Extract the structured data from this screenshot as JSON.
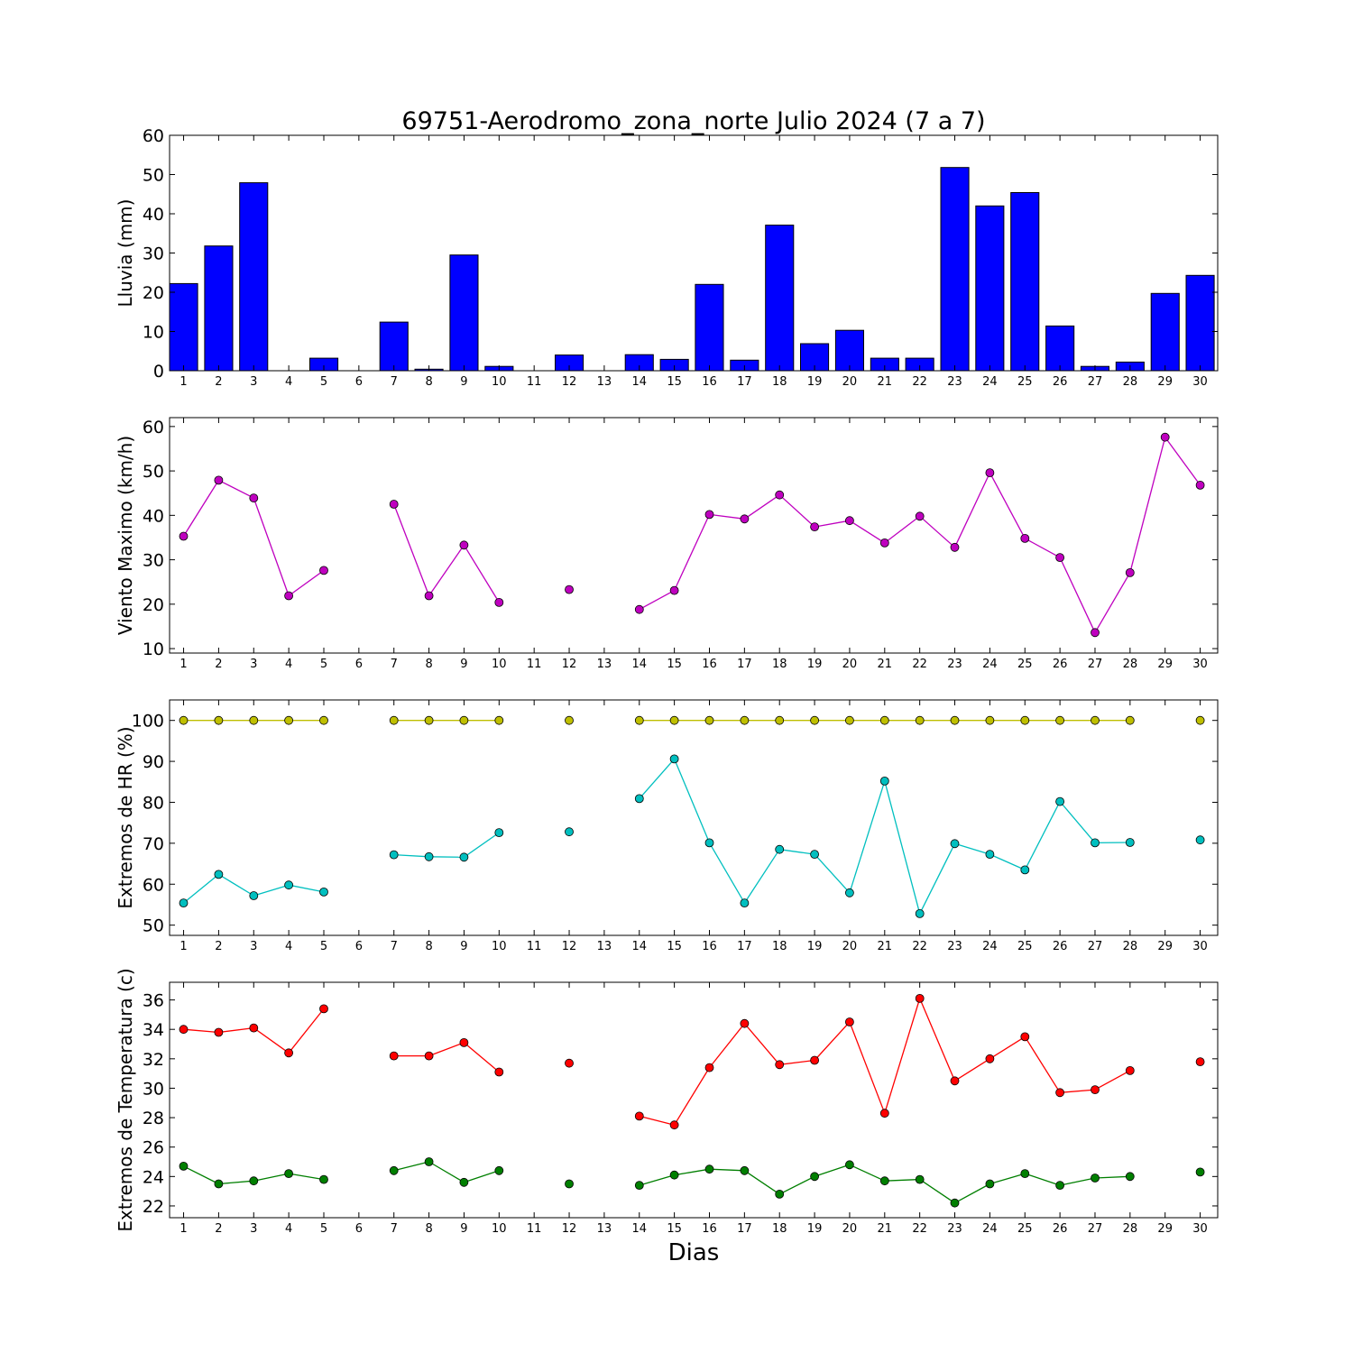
{
  "figure": {
    "title": "69751-Aerodromo_zona_norte Julio 2024  (7 a 7)",
    "xlabel": "Dias"
  },
  "chart_data": [
    {
      "type": "bar",
      "id": "lluvia",
      "ylabel": "Lluvia (mm)",
      "ylim": [
        0,
        60
      ],
      "yticks": [
        0,
        10,
        20,
        30,
        40,
        50,
        60
      ],
      "xlim": [
        0.6,
        30.5
      ],
      "x": [
        1,
        2,
        3,
        4,
        5,
        6,
        7,
        8,
        9,
        10,
        11,
        12,
        13,
        14,
        15,
        16,
        17,
        18,
        19,
        20,
        21,
        22,
        23,
        24,
        25,
        26,
        27,
        28,
        29,
        30
      ],
      "series": [
        {
          "color": "#0000ff",
          "values": [
            22.2,
            31.8,
            47.9,
            0,
            3.2,
            0,
            12.4,
            0.4,
            29.5,
            1.1,
            0,
            4.0,
            0,
            4.1,
            2.9,
            22.0,
            2.7,
            37.1,
            6.9,
            10.3,
            3.2,
            3.2,
            51.8,
            42.0,
            45.4,
            11.4,
            1.1,
            2.2,
            19.7,
            24.3
          ]
        }
      ]
    },
    {
      "type": "line",
      "id": "viento",
      "ylabel": "Viento Maximo (km/h)",
      "ylim": [
        9,
        62
      ],
      "yticks": [
        10,
        20,
        30,
        40,
        50,
        60
      ],
      "xlim": [
        0.6,
        30.5
      ],
      "x": [
        1,
        2,
        3,
        4,
        5,
        6,
        7,
        8,
        9,
        10,
        11,
        12,
        13,
        14,
        15,
        16,
        17,
        18,
        19,
        20,
        21,
        22,
        23,
        24,
        25,
        26,
        27,
        28,
        29,
        30
      ],
      "series": [
        {
          "color": "#bf00bf",
          "values": [
            35.3,
            47.9,
            43.9,
            21.9,
            27.6,
            null,
            42.5,
            21.9,
            33.3,
            20.4,
            null,
            23.3,
            null,
            18.8,
            23.1,
            40.2,
            39.2,
            44.6,
            37.4,
            38.8,
            33.8,
            39.8,
            32.8,
            49.6,
            34.8,
            30.5,
            13.6,
            27.1,
            57.6,
            46.8
          ]
        }
      ]
    },
    {
      "type": "line",
      "id": "hr",
      "ylabel": "Extremos de HR (%)",
      "ylim": [
        47.5,
        105
      ],
      "yticks": [
        50,
        60,
        70,
        80,
        90,
        100
      ],
      "xlim": [
        0.6,
        30.5
      ],
      "x": [
        1,
        2,
        3,
        4,
        5,
        6,
        7,
        8,
        9,
        10,
        11,
        12,
        13,
        14,
        15,
        16,
        17,
        18,
        19,
        20,
        21,
        22,
        23,
        24,
        25,
        26,
        27,
        28,
        29,
        30
      ],
      "series": [
        {
          "color": "#bfbf00",
          "values": [
            100,
            100,
            100,
            100,
            100,
            null,
            100,
            100,
            100,
            100,
            null,
            100,
            null,
            100,
            100,
            100,
            100,
            100,
            100,
            100,
            100,
            100,
            100,
            100,
            100,
            100,
            100,
            100,
            null,
            100
          ]
        },
        {
          "color": "#00bfbf",
          "values": [
            55.4,
            62.4,
            57.2,
            59.8,
            58.1,
            null,
            67.2,
            66.7,
            66.6,
            72.6,
            null,
            72.8,
            null,
            80.9,
            90.6,
            70.1,
            55.4,
            68.5,
            67.3,
            57.9,
            85.2,
            52.8,
            69.9,
            67.3,
            63.5,
            80.2,
            70.1,
            70.2,
            null,
            70.8
          ]
        }
      ]
    },
    {
      "type": "line",
      "id": "temperatura",
      "ylabel": "Extremos de Temperatura (c)",
      "ylim": [
        21.2,
        37.2
      ],
      "yticks": [
        22,
        24,
        26,
        28,
        30,
        32,
        34,
        36
      ],
      "xlim": [
        0.6,
        30.5
      ],
      "x": [
        1,
        2,
        3,
        4,
        5,
        6,
        7,
        8,
        9,
        10,
        11,
        12,
        13,
        14,
        15,
        16,
        17,
        18,
        19,
        20,
        21,
        22,
        23,
        24,
        25,
        26,
        27,
        28,
        29,
        30
      ],
      "series": [
        {
          "color": "#ff0000",
          "values": [
            34.0,
            33.8,
            34.1,
            32.4,
            35.4,
            null,
            32.2,
            32.2,
            33.1,
            31.1,
            null,
            31.7,
            null,
            28.1,
            27.5,
            31.4,
            34.4,
            31.6,
            31.9,
            34.5,
            28.3,
            36.1,
            30.5,
            32.0,
            33.5,
            29.7,
            29.9,
            31.2,
            null,
            31.8
          ]
        },
        {
          "color": "#007f00",
          "values": [
            24.7,
            23.5,
            23.7,
            24.2,
            23.8,
            null,
            24.4,
            25.0,
            23.6,
            24.4,
            null,
            23.5,
            null,
            23.4,
            24.1,
            24.5,
            24.4,
            22.8,
            24.0,
            24.8,
            23.7,
            23.8,
            22.2,
            23.5,
            24.2,
            23.4,
            23.9,
            24.0,
            null,
            24.3
          ]
        }
      ]
    }
  ]
}
